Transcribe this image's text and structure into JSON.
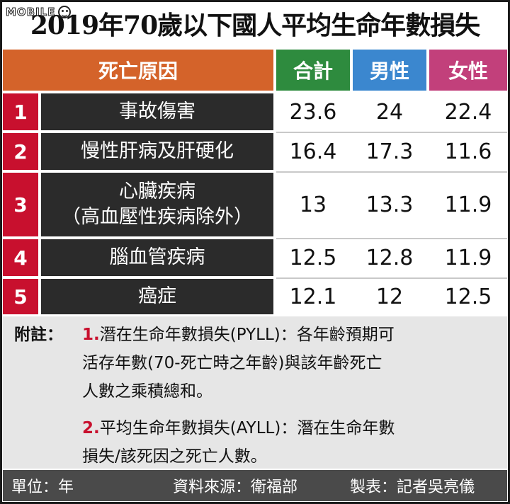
{
  "watermark": {
    "text": "MOBILE"
  },
  "title": "2019年70歲以下國人平均生命年數損失",
  "header": {
    "cause": "死亡原因",
    "total": "合計",
    "male": "男性",
    "female": "女性"
  },
  "rows": [
    {
      "rank": "1",
      "cause": [
        "事故傷害"
      ],
      "total": "23.6",
      "male": "24",
      "female": "22.4"
    },
    {
      "rank": "2",
      "cause": [
        "慢性肝病及肝硬化"
      ],
      "total": "16.4",
      "male": "17.3",
      "female": "11.6"
    },
    {
      "rank": "3",
      "cause": [
        "心臟疾病",
        "（高血壓性疾病除外）"
      ],
      "total": "13",
      "male": "13.3",
      "female": "11.9"
    },
    {
      "rank": "4",
      "cause": [
        "腦血管疾病"
      ],
      "total": "12.5",
      "male": "12.8",
      "female": "11.9"
    },
    {
      "rank": "5",
      "cause": [
        "癌症"
      ],
      "total": "12.1",
      "male": "12",
      "female": "12.5"
    }
  ],
  "notes": {
    "label": "附註：",
    "items": [
      {
        "num": "1.",
        "lines": [
          "潛在生命年數損失(PYLL)：各年齡預期可",
          "活存年數(70-死亡時之年齡)與該年齡死亡",
          "人數之乘積總和。"
        ]
      },
      {
        "num": "2.",
        "lines": [
          "平均生命年數損失(AYLL)：潛在生命年數",
          "損失/該死因之死亡人數。"
        ]
      }
    ]
  },
  "footer": {
    "unit": "單位：年",
    "source": "資料來源：衛福部",
    "maker": "製表：記者吳亮儀"
  }
}
